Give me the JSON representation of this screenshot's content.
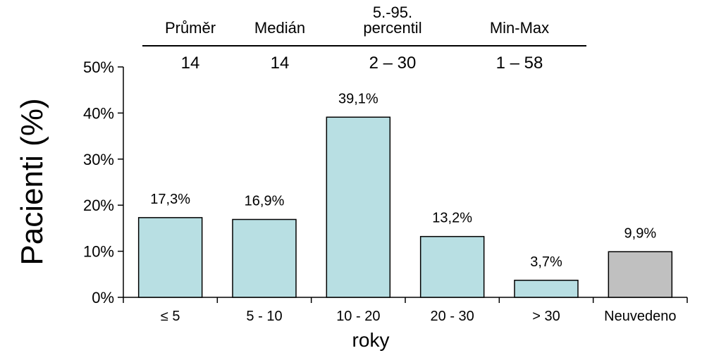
{
  "stats_table": {
    "headers": [
      [
        "Průměr"
      ],
      [
        "Medián"
      ],
      [
        "5.-95.",
        "percentil"
      ],
      [
        "Min-Max"
      ]
    ],
    "values": [
      "14",
      "14",
      "2 – 30",
      "1 – 58"
    ]
  },
  "chart_data": {
    "type": "bar",
    "categories": [
      "≤ 5",
      "5 - 10",
      "10 - 20",
      "20 - 30",
      "> 30",
      "Neuvedeno"
    ],
    "values": [
      17.3,
      16.9,
      39.1,
      13.2,
      3.7,
      9.9
    ],
    "data_labels": [
      "17,3%",
      "16,9%",
      "39,1%",
      "13,2%",
      "3,7%",
      "9,9%"
    ],
    "bar_colors": [
      "#b8dfe3",
      "#b8dfe3",
      "#b8dfe3",
      "#b8dfe3",
      "#b8dfe3",
      "#c0c0c0"
    ],
    "xlabel": "roky",
    "ylabel": "Pacienti (%)",
    "ylim": [
      0,
      50
    ],
    "yticks": [
      0,
      10,
      20,
      30,
      40,
      50
    ],
    "ytick_labels": [
      "0%",
      "10%",
      "20%",
      "30%",
      "40%",
      "50%"
    ],
    "grid": false
  }
}
